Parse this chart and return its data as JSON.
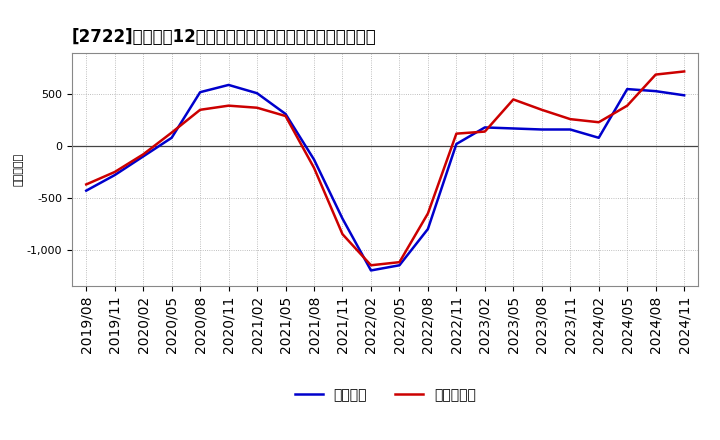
{
  "title": "[2722]　利益の12か月移動合計の対前年同期増減額の推移",
  "ylabel": "（百万円）",
  "legend1": "経常利益",
  "legend2": "当期純利益",
  "x_labels": [
    "2019/08",
    "2019/11",
    "2020/02",
    "2020/05",
    "2020/08",
    "2020/11",
    "2021/02",
    "2021/05",
    "2021/08",
    "2021/11",
    "2022/02",
    "2022/05",
    "2022/08",
    "2022/11",
    "2023/02",
    "2023/05",
    "2023/08",
    "2023/11",
    "2024/02",
    "2024/05",
    "2024/08",
    "2024/11"
  ],
  "keijo_rieki": [
    -430,
    -280,
    -100,
    80,
    520,
    590,
    510,
    310,
    -130,
    -700,
    -1200,
    -1150,
    -800,
    20,
    180,
    170,
    160,
    160,
    80,
    550,
    530,
    490
  ],
  "touki_junseki": [
    -370,
    -250,
    -80,
    130,
    350,
    390,
    370,
    290,
    -210,
    -850,
    -1150,
    -1120,
    -650,
    120,
    140,
    450,
    350,
    260,
    230,
    390,
    690,
    720
  ],
  "keijo_color": "#0000cc",
  "touki_color": "#cc0000",
  "bg_color": "#ffffff",
  "plot_bg_color": "#ffffff",
  "grid_color": "#aaaaaa",
  "title_fontsize": 12,
  "legend_fontsize": 10,
  "tick_fontsize": 8,
  "ylabel_fontsize": 8,
  "ylim": [
    -1350,
    900
  ],
  "yticks": [
    -1000,
    -500,
    0,
    500
  ],
  "line_width": 1.8
}
